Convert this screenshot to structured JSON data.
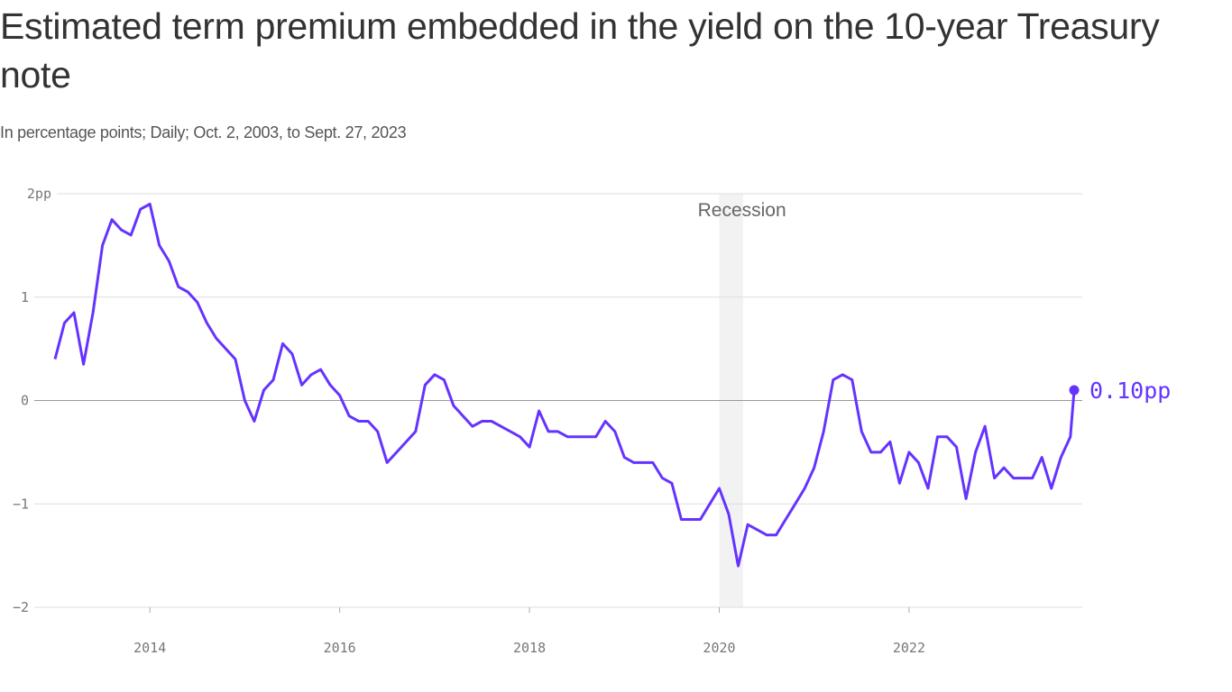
{
  "chart_data": {
    "type": "line",
    "title": "Estimated term premium embedded in the yield on the 10-year Treasury note",
    "subtitle": "In percentage points; Daily; Oct. 2, 2003, to Sept. 27, 2023",
    "xlabel": "",
    "ylabel": "",
    "xlim": [
      2013.0,
      2023.74
    ],
    "ylim": [
      -2,
      2
    ],
    "x_ticks": [
      2014,
      2016,
      2018,
      2020,
      2022
    ],
    "x_tick_labels": [
      "2014",
      "2016",
      "2018",
      "2020",
      "2022"
    ],
    "y_ticks": [
      2,
      1,
      0,
      -1,
      -2
    ],
    "y_tick_labels": [
      "2pp",
      "1",
      "0",
      "−1",
      "−2"
    ],
    "grid": "horizontal",
    "line_color": "#6533ff",
    "recession": {
      "label": "Recession",
      "start": 2020.0,
      "end": 2020.25,
      "color": "#f2f2f2"
    },
    "end_label": "0.10pp",
    "end_value": 0.1,
    "x": [
      2013.0,
      2013.1,
      2013.2,
      2013.3,
      2013.4,
      2013.5,
      2013.6,
      2013.7,
      2013.8,
      2013.9,
      2014.0,
      2014.1,
      2014.2,
      2014.3,
      2014.4,
      2014.5,
      2014.6,
      2014.7,
      2014.8,
      2014.9,
      2015.0,
      2015.1,
      2015.2,
      2015.3,
      2015.4,
      2015.5,
      2015.6,
      2015.7,
      2015.8,
      2015.9,
      2016.0,
      2016.1,
      2016.2,
      2016.3,
      2016.4,
      2016.5,
      2016.6,
      2016.7,
      2016.8,
      2016.9,
      2017.0,
      2017.1,
      2017.2,
      2017.3,
      2017.4,
      2017.5,
      2017.6,
      2017.7,
      2017.8,
      2017.9,
      2018.0,
      2018.1,
      2018.2,
      2018.3,
      2018.4,
      2018.5,
      2018.6,
      2018.7,
      2018.8,
      2018.9,
      2019.0,
      2019.1,
      2019.2,
      2019.3,
      2019.4,
      2019.5,
      2019.6,
      2019.7,
      2019.8,
      2019.9,
      2020.0,
      2020.1,
      2020.2,
      2020.3,
      2020.4,
      2020.5,
      2020.6,
      2020.7,
      2020.8,
      2020.9,
      2021.0,
      2021.1,
      2021.2,
      2021.3,
      2021.4,
      2021.5,
      2021.6,
      2021.7,
      2021.8,
      2021.9,
      2022.0,
      2022.1,
      2022.2,
      2022.3,
      2022.4,
      2022.5,
      2022.6,
      2022.7,
      2022.8,
      2022.9,
      2023.0,
      2023.1,
      2023.2,
      2023.3,
      2023.4,
      2023.5,
      2023.6,
      2023.7,
      2023.74
    ],
    "values": [
      0.4,
      0.75,
      0.85,
      0.35,
      0.85,
      1.5,
      1.75,
      1.65,
      1.6,
      1.85,
      1.9,
      1.5,
      1.35,
      1.1,
      1.05,
      0.95,
      0.75,
      0.6,
      0.5,
      0.4,
      0.0,
      -0.2,
      0.1,
      0.2,
      0.55,
      0.45,
      0.15,
      0.25,
      0.3,
      0.15,
      0.05,
      -0.15,
      -0.2,
      -0.2,
      -0.3,
      -0.6,
      -0.5,
      -0.4,
      -0.3,
      0.15,
      0.25,
      0.2,
      -0.05,
      -0.15,
      -0.25,
      -0.2,
      -0.2,
      -0.25,
      -0.3,
      -0.35,
      -0.45,
      -0.1,
      -0.3,
      -0.3,
      -0.35,
      -0.35,
      -0.35,
      -0.35,
      -0.2,
      -0.3,
      -0.55,
      -0.6,
      -0.6,
      -0.6,
      -0.75,
      -0.8,
      -1.15,
      -1.15,
      -1.15,
      -1.0,
      -0.85,
      -1.1,
      -1.6,
      -1.2,
      -1.25,
      -1.3,
      -1.3,
      -1.15,
      -1.0,
      -0.85,
      -0.65,
      -0.3,
      0.2,
      0.25,
      0.2,
      -0.3,
      -0.5,
      -0.5,
      -0.4,
      -0.8,
      -0.5,
      -0.6,
      -0.85,
      -0.35,
      -0.35,
      -0.45,
      -0.95,
      -0.5,
      -0.25,
      -0.75,
      -0.65,
      -0.75,
      -0.75,
      -0.75,
      -0.55,
      -0.85,
      -0.55,
      -0.35,
      0.1
    ]
  }
}
